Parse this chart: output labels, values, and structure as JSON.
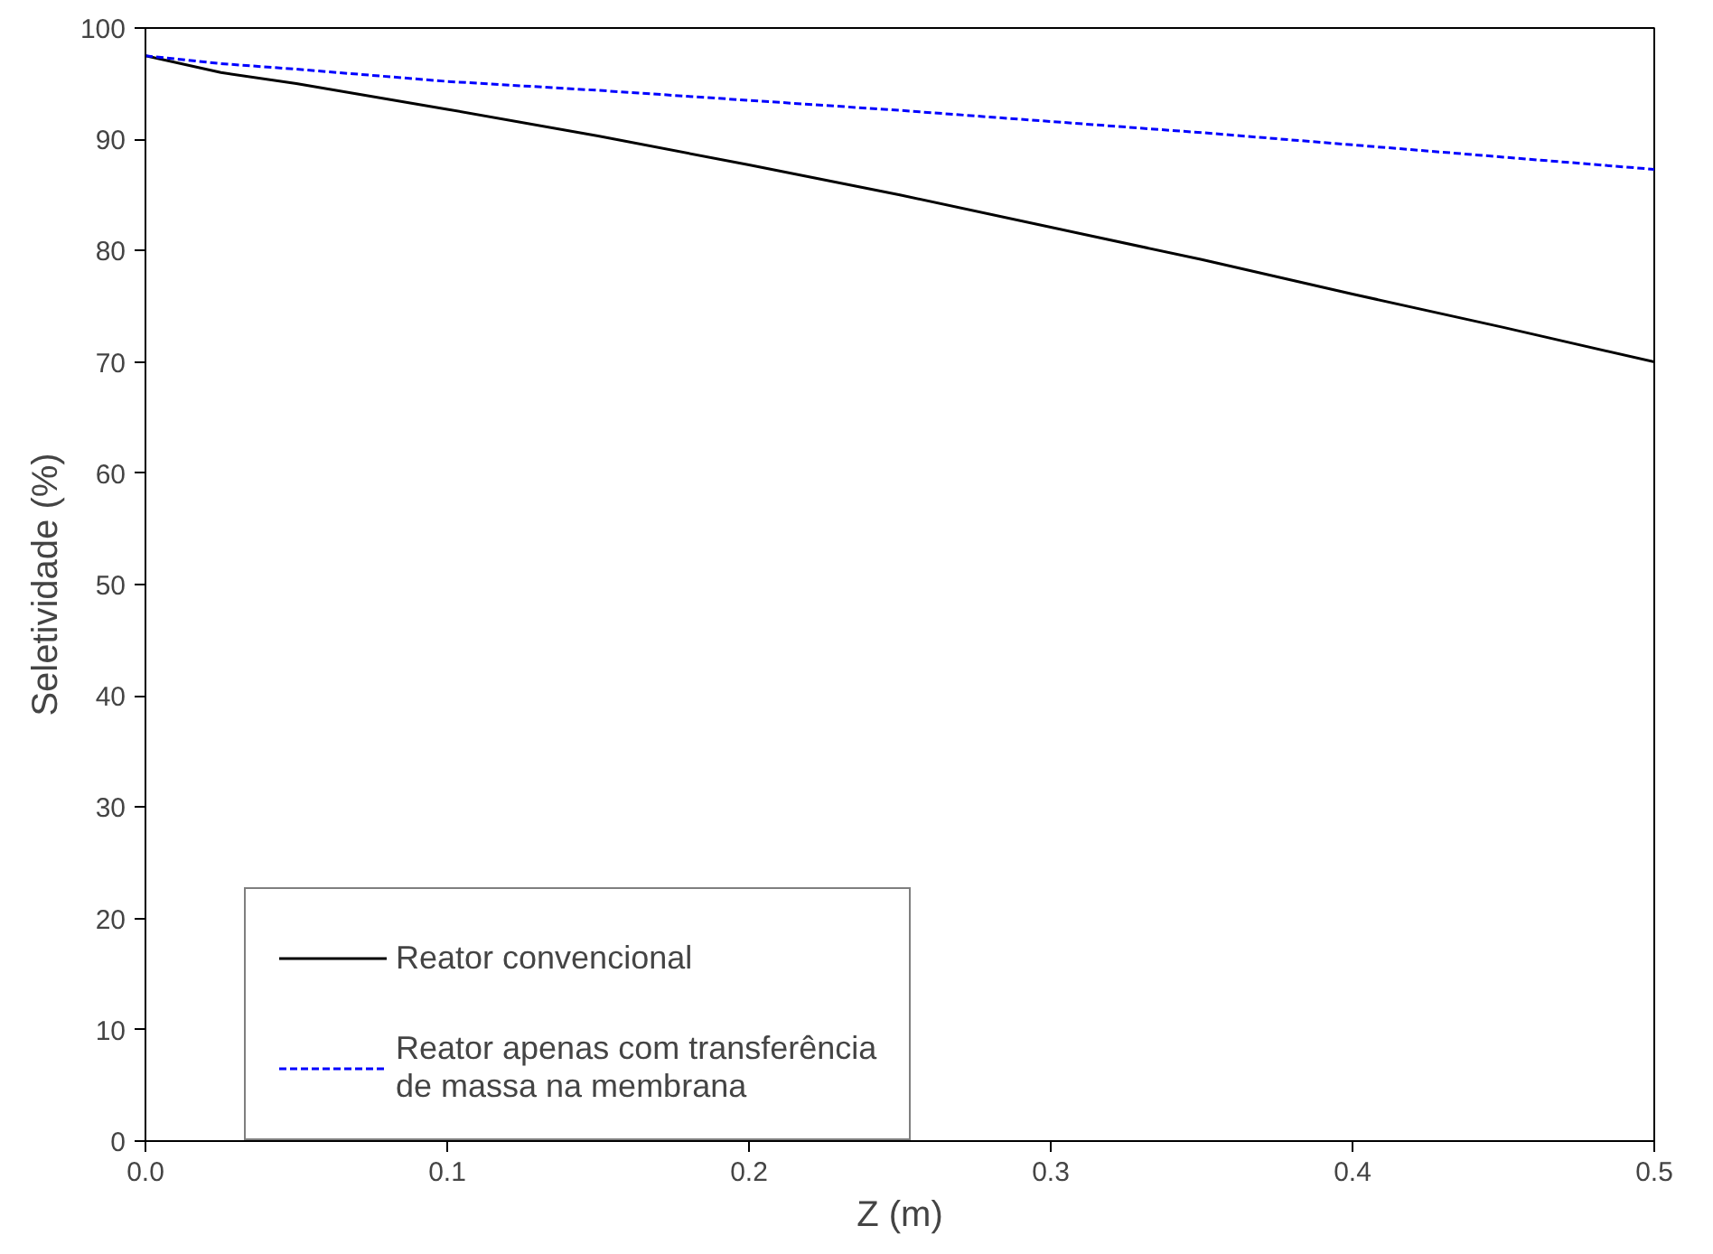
{
  "chart_data": {
    "type": "line",
    "xlabel": "Z (m)",
    "ylabel": "Seletividade (%)",
    "xlim": [
      0,
      0.5
    ],
    "ylim": [
      0,
      100
    ],
    "xticks": [
      {
        "value": 0,
        "label": "0.0"
      },
      0.1,
      0.2,
      0.3,
      0.4,
      0.5
    ],
    "yticks": [
      0,
      10,
      20,
      30,
      40,
      50,
      60,
      70,
      80,
      90,
      100
    ],
    "x": [
      0,
      0.025,
      0.05,
      0.1,
      0.15,
      0.2,
      0.25,
      0.3,
      0.35,
      0.4,
      0.45,
      0.5
    ],
    "series": [
      {
        "name": "Reator convencional",
        "color": "#000000",
        "line_style": "solid",
        "values": [
          97.5,
          96,
          95,
          92.7,
          90.3,
          87.7,
          85,
          82.1,
          79.2,
          76.1,
          73.1,
          70
        ]
      },
      {
        "name": "Reator apenas com transferência de massa na membrana",
        "color": "#0000ff",
        "line_style": "dashed",
        "values": [
          97.5,
          96.8,
          96.3,
          95.2,
          94.4,
          93.5,
          92.6,
          91.6,
          90.6,
          89.5,
          88.4,
          87.3
        ]
      }
    ],
    "legend": "left",
    "grid": false
  }
}
